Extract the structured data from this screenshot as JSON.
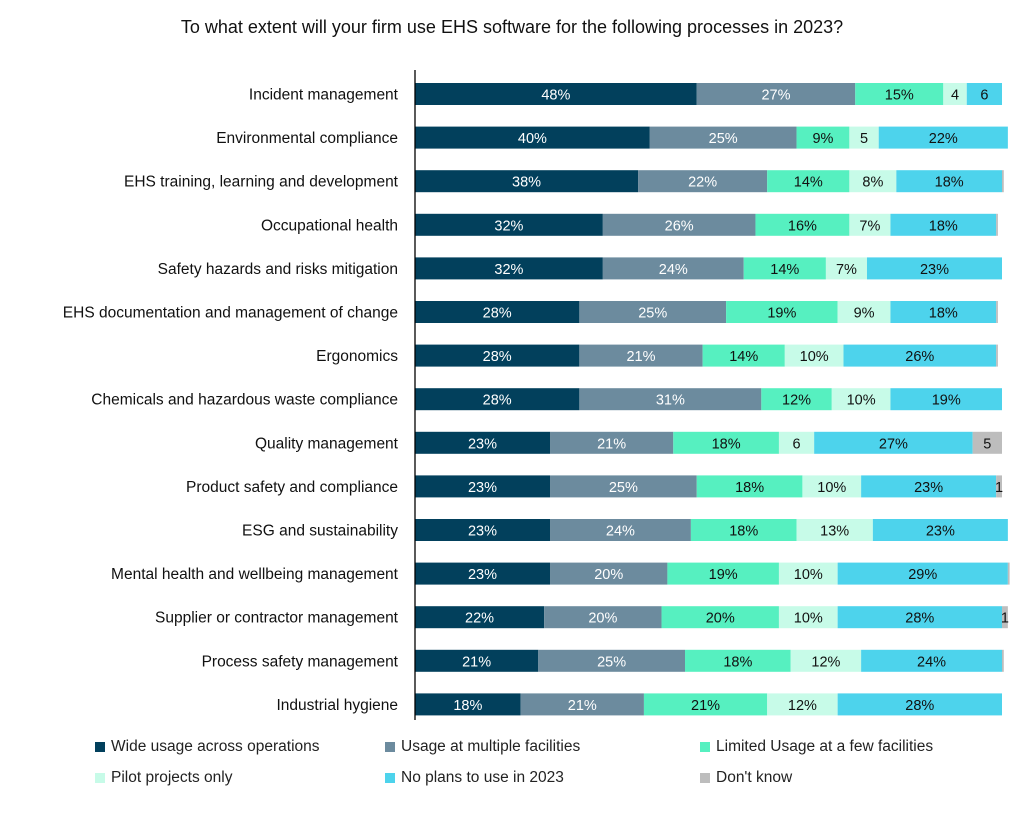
{
  "chart_data": {
    "type": "bar",
    "orientation": "horizontal",
    "stacked": true,
    "title": "To what extent will your firm use EHS software for the following processes in 2023?",
    "categories": [
      "Incident management",
      "Environmental compliance",
      "EHS training, learning and development",
      "Occupational health",
      "Safety hazards and risks mitigation",
      "EHS documentation and management of change",
      "Ergonomics",
      "Chemicals and hazardous waste compliance",
      "Quality management",
      "Product safety and compliance",
      "ESG and sustainability",
      "Mental health and wellbeing management",
      "Supplier or contractor management",
      "Process safety management",
      "Industrial hygiene"
    ],
    "series": [
      {
        "name": "Wide usage across operations",
        "color": "#02405c",
        "values": [
          48,
          40,
          38,
          32,
          32,
          28,
          28,
          28,
          23,
          23,
          23,
          23,
          22,
          21,
          18
        ],
        "labels": [
          "48%",
          "40%",
          "38%",
          "32%",
          "32%",
          "28%",
          "28%",
          "28%",
          "23%",
          "23%",
          "23%",
          "23%",
          "22%",
          "21%",
          "18%"
        ]
      },
      {
        "name": "Usage at multiple facilities",
        "color": "#6c8b9e",
        "values": [
          27,
          25,
          22,
          26,
          24,
          25,
          21,
          31,
          21,
          25,
          24,
          20,
          20,
          25,
          21
        ],
        "labels": [
          "27%",
          "25%",
          "22%",
          "26%",
          "24%",
          "25%",
          "21%",
          "31%",
          "21%",
          "25%",
          "24%",
          "20%",
          "20%",
          "25%",
          "21%"
        ]
      },
      {
        "name": "Limited Usage at a few facilities",
        "color": "#56f0c0",
        "values": [
          15,
          9,
          14,
          16,
          14,
          19,
          14,
          12,
          18,
          18,
          18,
          19,
          20,
          18,
          21
        ],
        "labels": [
          "15%",
          "9%",
          "14%",
          "16%",
          "14%",
          "19%",
          "14%",
          "12%",
          "18%",
          "18%",
          "18%",
          "19%",
          "20%",
          "18%",
          "21%"
        ]
      },
      {
        "name": "Pilot projects only",
        "color": "#c7fbe8",
        "values": [
          4,
          5,
          8,
          7,
          7,
          9,
          10,
          10,
          6,
          10,
          13,
          10,
          10,
          12,
          12
        ],
        "labels": [
          "4",
          "5",
          "8%",
          "7%",
          "7%",
          "9%",
          "10%",
          "10%",
          "6",
          "10%",
          "13%",
          "10%",
          "10%",
          "12%",
          "12%"
        ]
      },
      {
        "name": "No plans to use in 2023",
        "color": "#4dd3ec",
        "values": [
          6,
          22,
          18,
          18,
          23,
          18,
          26,
          19,
          27,
          23,
          23,
          29,
          28,
          24,
          28
        ],
        "labels": [
          "6",
          "22%",
          "18%",
          "18%",
          "23%",
          "18%",
          "26%",
          "19%",
          "27%",
          "23%",
          "23%",
          "29%",
          "28%",
          "24%",
          "28%"
        ]
      },
      {
        "name": "Don't know",
        "color": "#bdbdbd",
        "values": [
          0,
          0,
          0.3,
          0.3,
          0,
          0.3,
          0.3,
          0,
          5,
          1,
          0,
          0.3,
          1,
          0.3,
          0
        ],
        "labels": [
          "",
          "",
          "",
          "",
          "",
          "",
          "",
          "",
          "5",
          "1",
          "",
          "",
          "1",
          "",
          ""
        ]
      }
    ],
    "xlim": [
      0,
      100
    ],
    "legend_position": "bottom"
  }
}
